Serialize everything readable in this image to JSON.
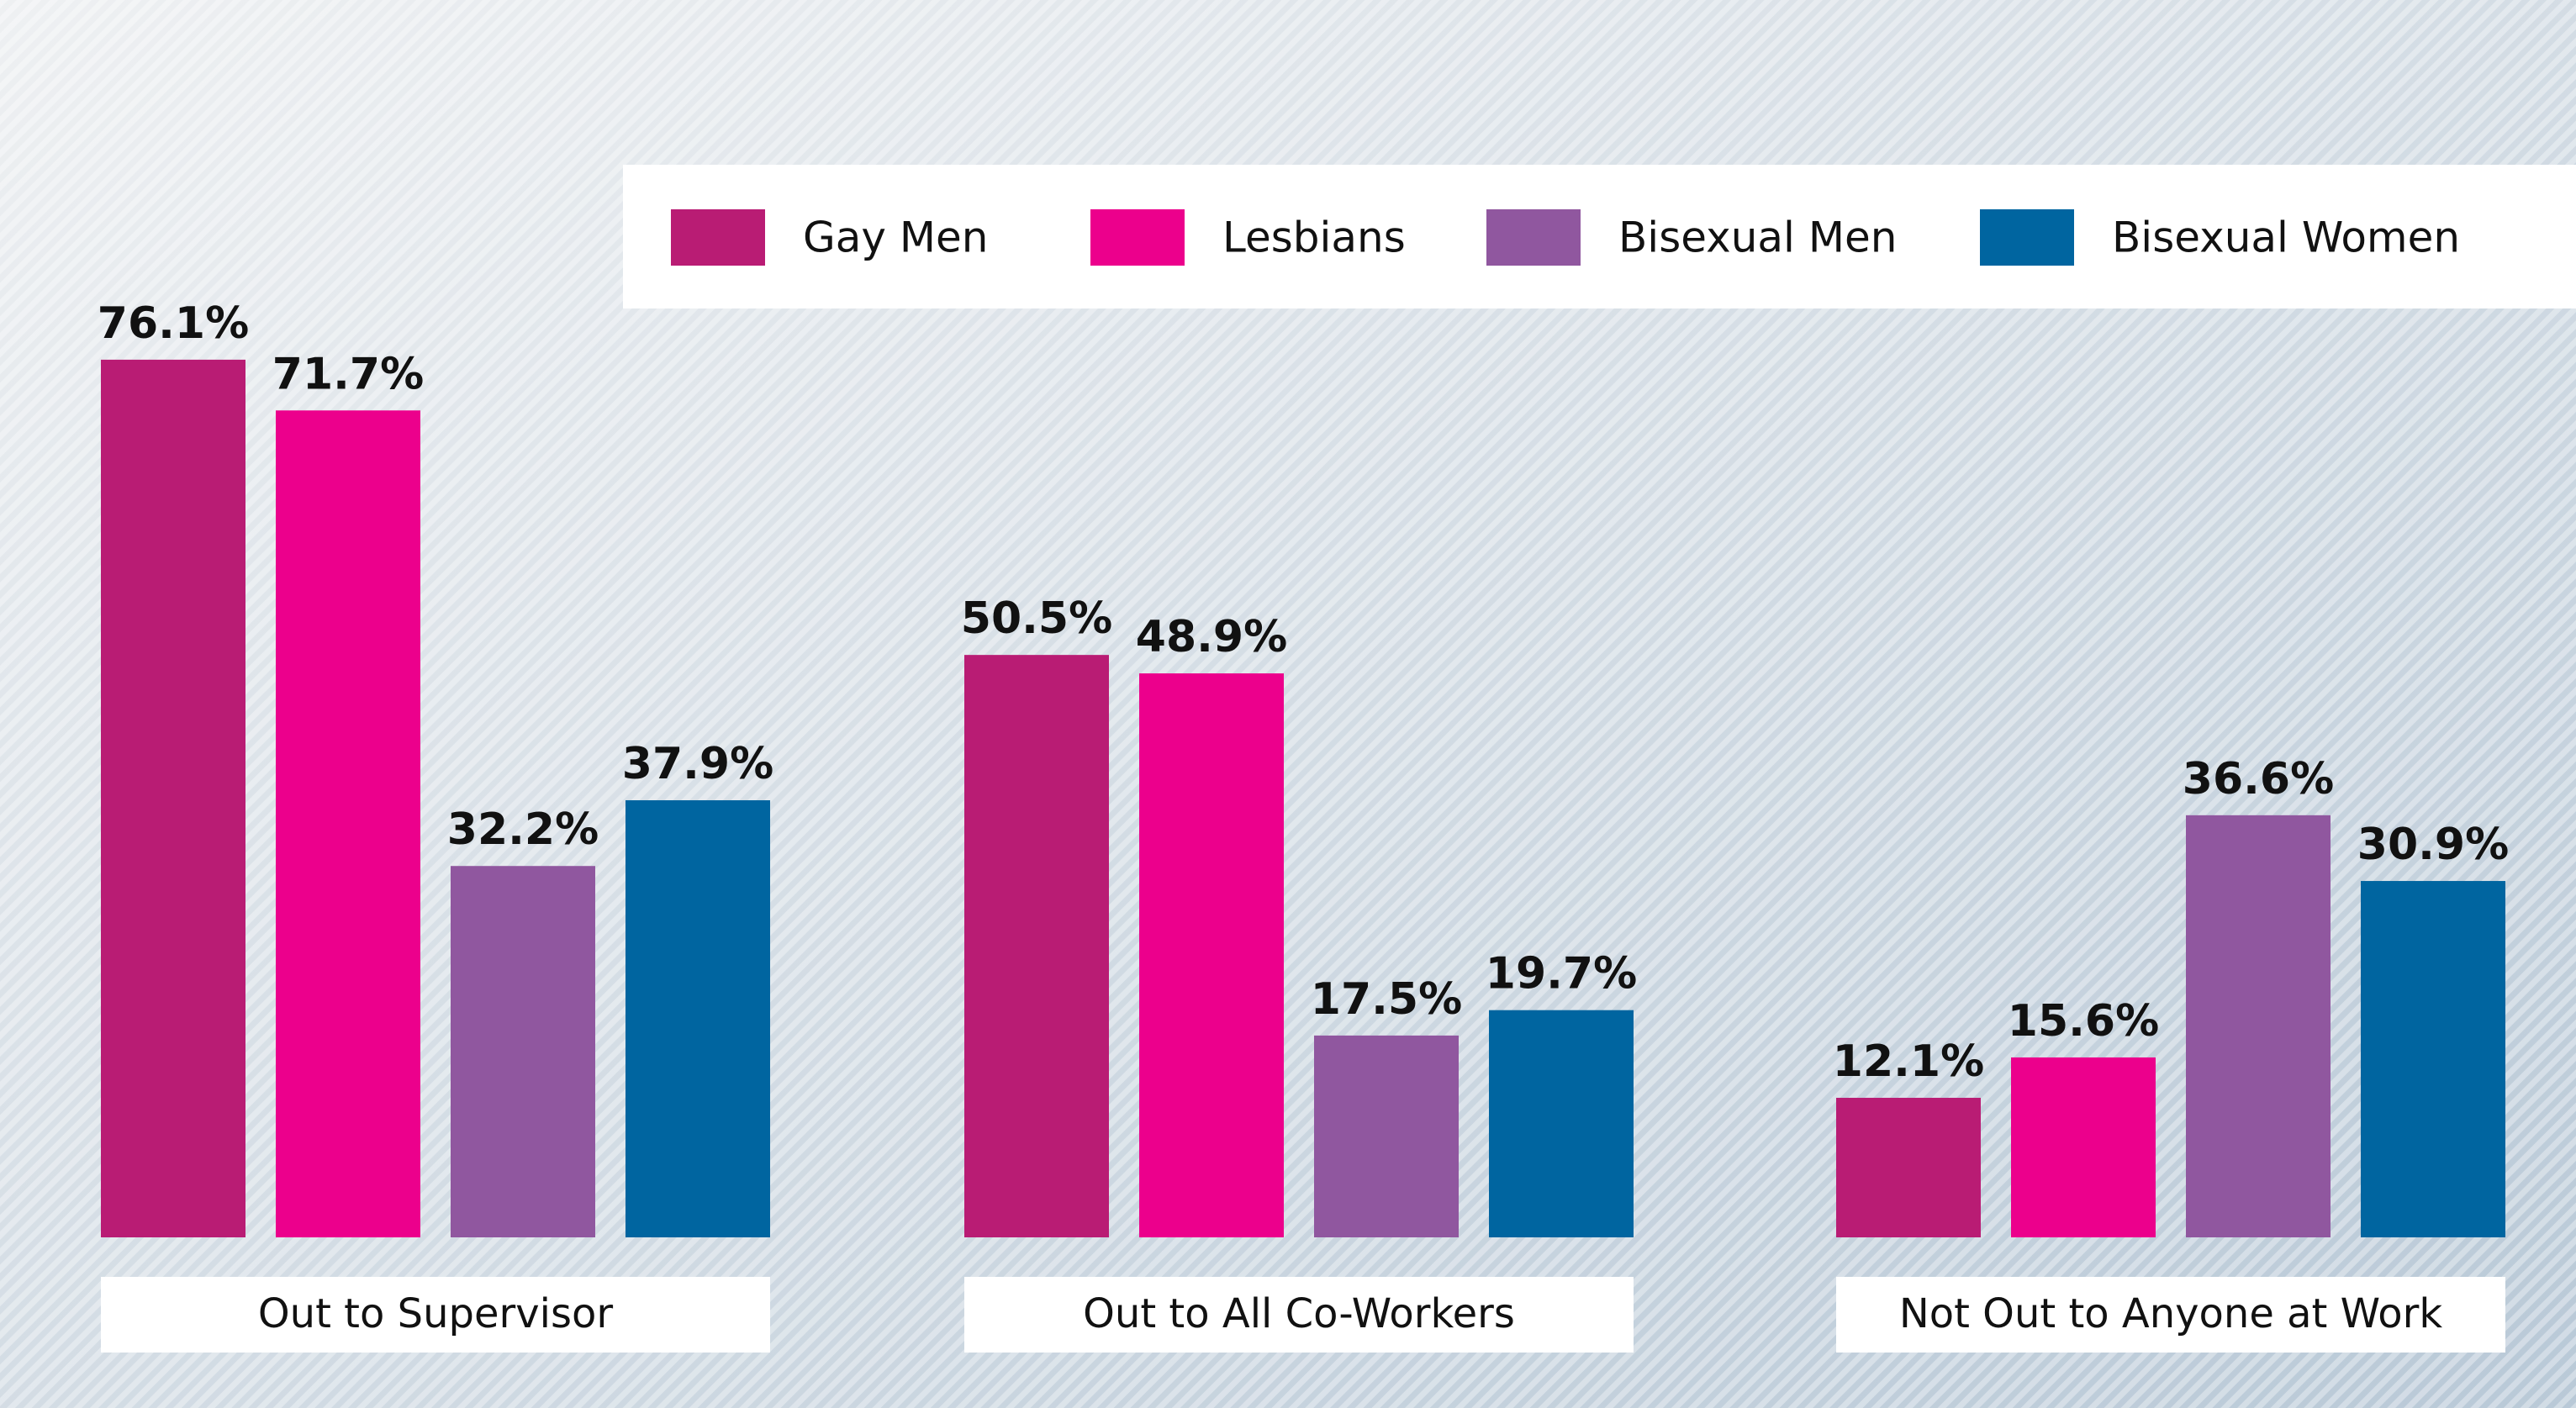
{
  "chart_data": {
    "type": "bar",
    "categories": [
      "Out to Supervisor",
      "Out to All Co-Workers",
      "Not Out to Anyone at Work"
    ],
    "series": [
      {
        "name": "Gay Men",
        "color": "#b91c74",
        "values": [
          76.1,
          50.5,
          12.1
        ],
        "value_labels": [
          "76.1%",
          "50.5%",
          "12.1%"
        ]
      },
      {
        "name": "Lesbians",
        "color": "#ec008c",
        "values": [
          71.7,
          48.9,
          15.6
        ],
        "value_labels": [
          "71.7%",
          "48.9%",
          "15.6%"
        ]
      },
      {
        "name": "Bisexual Men",
        "color": "#90579f",
        "values": [
          32.2,
          17.5,
          36.6
        ],
        "value_labels": [
          "32.2%",
          "17.5%",
          "36.6%"
        ]
      },
      {
        "name": "Bisexual Women",
        "color": "#0065a0",
        "values": [
          37.9,
          19.7,
          30.9
        ],
        "value_labels": [
          "37.9%",
          "19.7%",
          "30.9%"
        ]
      }
    ]
  }
}
